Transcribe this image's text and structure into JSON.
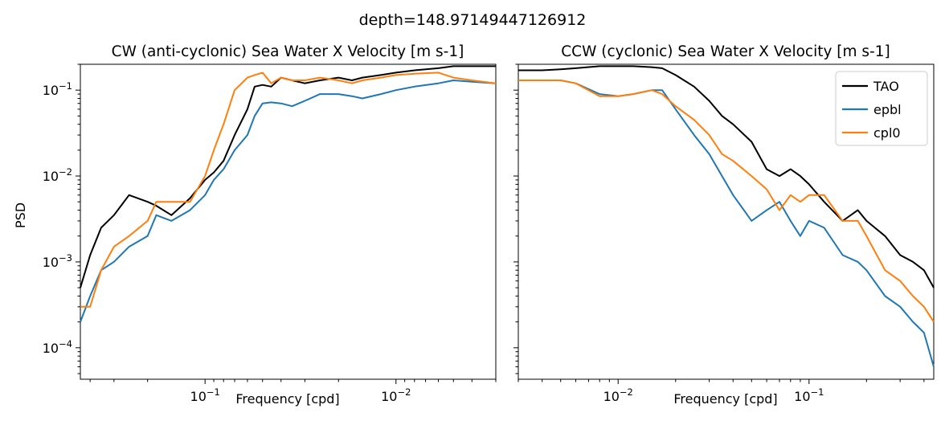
{
  "chart_data": [
    {
      "type": "line",
      "suptitle": "depth=148.97149447126912",
      "title": "CW (anti-cyclonic) Sea Water X Velocity [m s-1]",
      "xlabel": "Frequency [cpd]",
      "ylabel": "PSD",
      "xscale": "log",
      "xaxis_reversed": true,
      "xlim": [
        0.45,
        0.003
      ],
      "ylim": [
        4.3e-05,
        0.2
      ],
      "yscale": "log",
      "xticks": [
        "10^-1",
        "10^-2"
      ],
      "yticks": [
        "10^-4",
        "10^-3",
        "10^-2",
        "10^-1"
      ],
      "x": [
        0.45,
        0.4,
        0.35,
        0.3,
        0.25,
        0.2,
        0.18,
        0.15,
        0.12,
        0.1,
        0.09,
        0.08,
        0.07,
        0.06,
        0.055,
        0.05,
        0.045,
        0.04,
        0.035,
        0.03,
        0.025,
        0.02,
        0.017,
        0.015,
        0.012,
        0.01,
        0.008,
        0.006,
        0.005,
        0.004,
        0.003
      ],
      "series": [
        {
          "name": "TAO",
          "color": "#000000",
          "values": [
            0.0005,
            0.0012,
            0.0025,
            0.0035,
            0.006,
            0.005,
            0.0045,
            0.0035,
            0.0055,
            0.009,
            0.011,
            0.015,
            0.03,
            0.06,
            0.11,
            0.115,
            0.11,
            0.14,
            0.13,
            0.12,
            0.13,
            0.14,
            0.13,
            0.14,
            0.15,
            0.16,
            0.17,
            0.18,
            0.19,
            0.19,
            0.19
          ]
        },
        {
          "name": "epbl",
          "color": "#1f77b4",
          "values": [
            0.0002,
            0.0004,
            0.0008,
            0.001,
            0.0015,
            0.002,
            0.0035,
            0.003,
            0.004,
            0.006,
            0.009,
            0.012,
            0.02,
            0.03,
            0.05,
            0.07,
            0.072,
            0.07,
            0.065,
            0.075,
            0.09,
            0.09,
            0.085,
            0.08,
            0.09,
            0.1,
            0.11,
            0.12,
            0.13,
            0.125,
            0.12
          ]
        },
        {
          "name": "cpl0",
          "color": "#ff7f0e",
          "values": [
            0.0003,
            0.0003,
            0.0008,
            0.0015,
            0.002,
            0.003,
            0.005,
            0.005,
            0.005,
            0.01,
            0.02,
            0.04,
            0.1,
            0.14,
            0.15,
            0.16,
            0.12,
            0.14,
            0.13,
            0.13,
            0.14,
            0.13,
            0.12,
            0.13,
            0.14,
            0.15,
            0.155,
            0.16,
            0.14,
            0.13,
            0.12
          ]
        }
      ]
    },
    {
      "type": "line",
      "title": "CCW (cyclonic) Sea Water X Velocity [m s-1]",
      "xlabel": "Frequency [cpd]",
      "xscale": "log",
      "xlim": [
        0.003,
        0.45
      ],
      "ylim": [
        4.3e-05,
        0.2
      ],
      "yscale": "log",
      "xticks": [
        "10^-2",
        "10^-1"
      ],
      "legend": "top-right",
      "x": [
        0.003,
        0.004,
        0.005,
        0.006,
        0.008,
        0.01,
        0.012,
        0.015,
        0.017,
        0.02,
        0.025,
        0.03,
        0.035,
        0.04,
        0.05,
        0.06,
        0.07,
        0.08,
        0.09,
        0.1,
        0.12,
        0.15,
        0.18,
        0.2,
        0.25,
        0.3,
        0.35,
        0.4,
        0.45
      ],
      "series": [
        {
          "name": "TAO",
          "color": "#000000",
          "values": [
            0.17,
            0.17,
            0.175,
            0.18,
            0.19,
            0.19,
            0.19,
            0.185,
            0.18,
            0.15,
            0.11,
            0.075,
            0.05,
            0.04,
            0.025,
            0.012,
            0.01,
            0.012,
            0.01,
            0.008,
            0.005,
            0.003,
            0.004,
            0.003,
            0.002,
            0.0012,
            0.001,
            0.0008,
            0.0005
          ]
        },
        {
          "name": "epbl",
          "color": "#1f77b4",
          "values": [
            0.13,
            0.13,
            0.13,
            0.12,
            0.09,
            0.085,
            0.09,
            0.1,
            0.1,
            0.06,
            0.03,
            0.018,
            0.01,
            0.006,
            0.003,
            0.004,
            0.005,
            0.003,
            0.002,
            0.003,
            0.0025,
            0.0012,
            0.001,
            0.0008,
            0.0004,
            0.0003,
            0.0002,
            0.00015,
            6e-05
          ]
        },
        {
          "name": "cpl0",
          "color": "#ff7f0e",
          "values": [
            0.13,
            0.13,
            0.13,
            0.12,
            0.085,
            0.085,
            0.09,
            0.1,
            0.09,
            0.065,
            0.045,
            0.03,
            0.018,
            0.015,
            0.01,
            0.007,
            0.004,
            0.006,
            0.005,
            0.006,
            0.006,
            0.003,
            0.003,
            0.002,
            0.0008,
            0.0006,
            0.0004,
            0.0003,
            0.0002
          ]
        }
      ]
    }
  ]
}
